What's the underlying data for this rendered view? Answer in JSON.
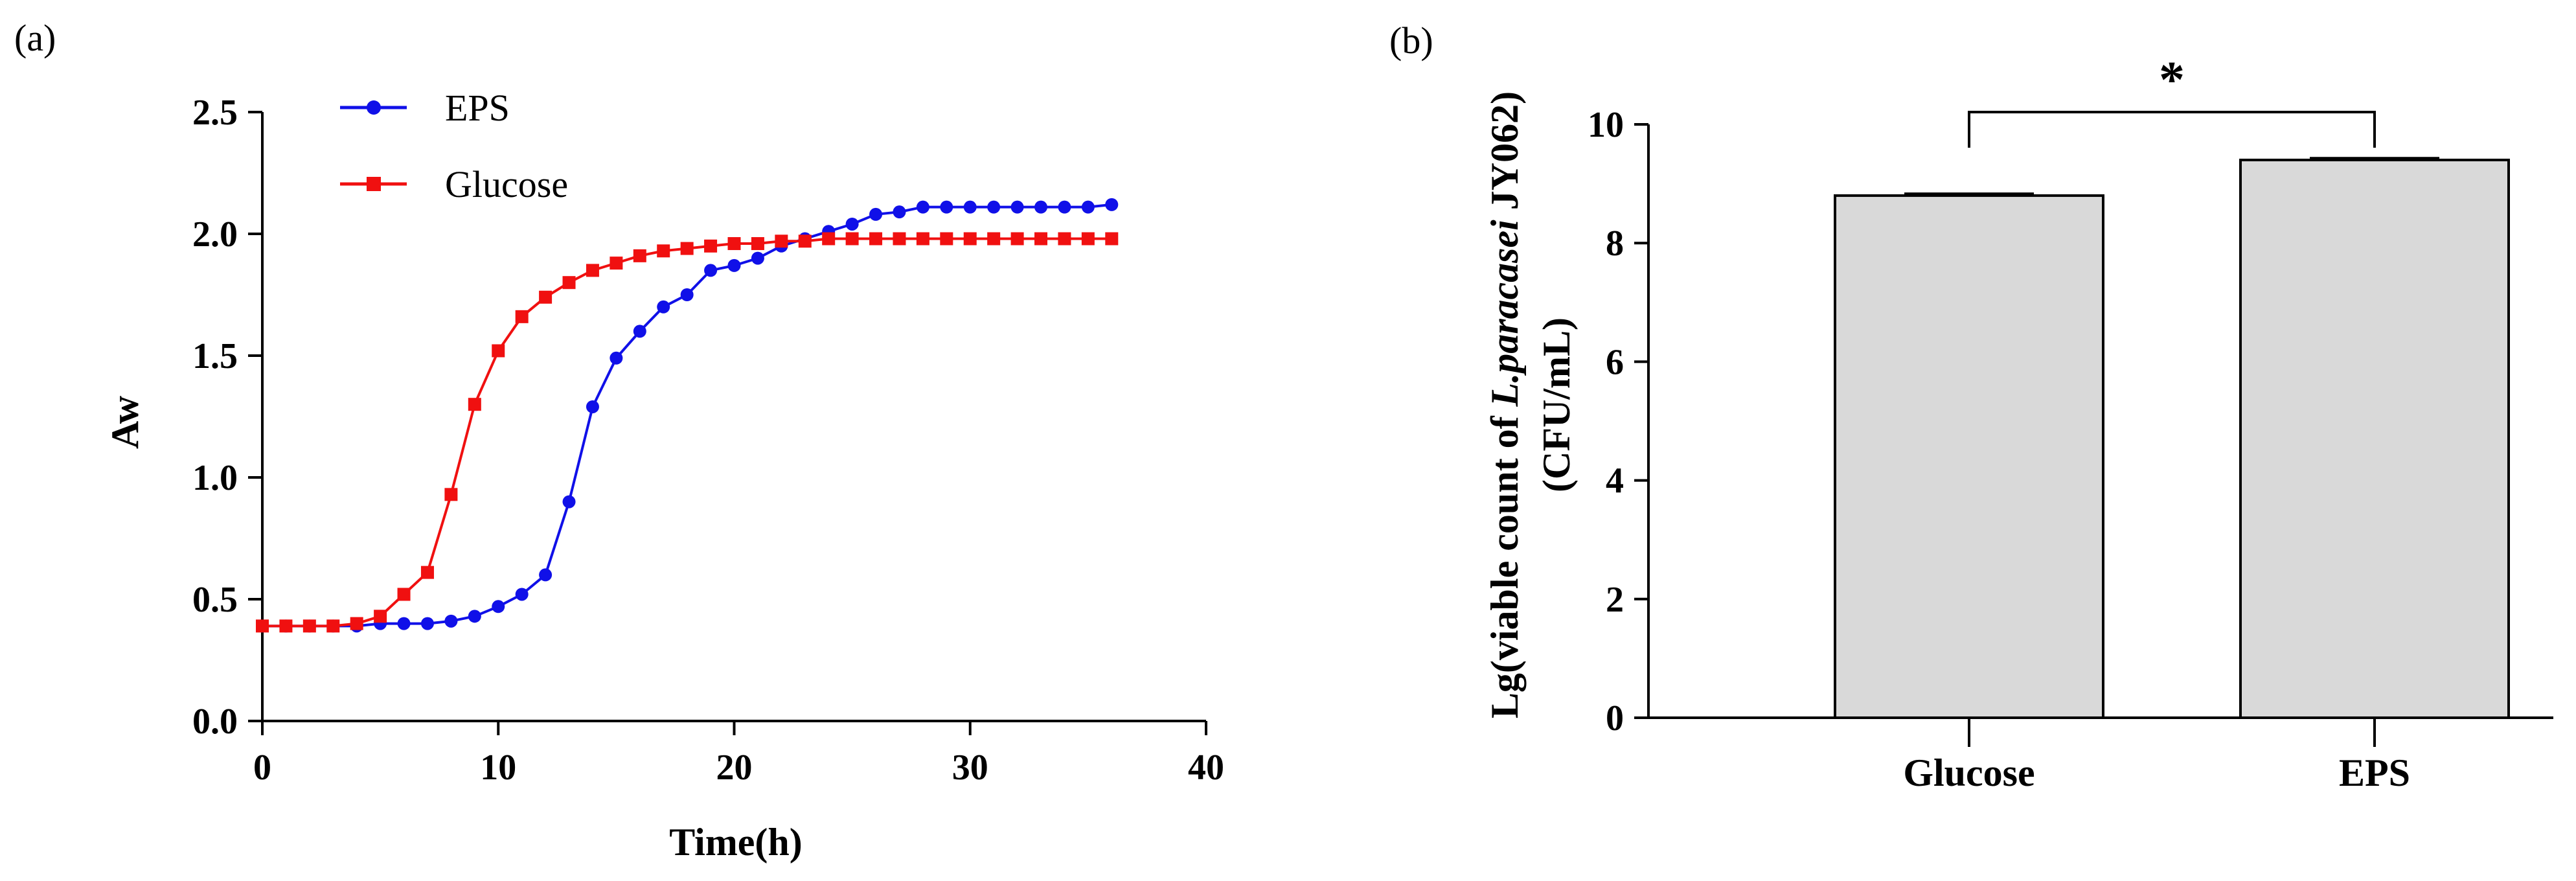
{
  "panel_labels": {
    "a": "(a)",
    "b": "(b)"
  },
  "chart_data": [
    {
      "type": "line",
      "xlabel": "Time(h)",
      "ylabel": "Aw",
      "xlim": [
        0,
        40
      ],
      "ylim": [
        0,
        2.5
      ],
      "xticks": [
        "0",
        "10",
        "20",
        "30",
        "40"
      ],
      "yticks": [
        "0.0",
        "0.5",
        "1.0",
        "1.5",
        "2.0",
        "2.5"
      ],
      "legend_position": "top-left",
      "x": [
        0,
        1,
        2,
        3,
        4,
        5,
        6,
        7,
        8,
        9,
        10,
        11,
        12,
        13,
        14,
        15,
        16,
        17,
        18,
        19,
        20,
        21,
        22,
        23,
        24,
        25,
        26,
        27,
        28,
        29,
        30,
        31,
        32,
        33,
        34,
        35,
        36
      ],
      "series": [
        {
          "name": "EPS",
          "color": "#1010e8",
          "marker": "circle",
          "values": [
            0.39,
            0.39,
            0.39,
            0.39,
            0.39,
            0.4,
            0.4,
            0.4,
            0.41,
            0.43,
            0.47,
            0.52,
            0.6,
            0.9,
            1.29,
            1.49,
            1.6,
            1.7,
            1.75,
            1.85,
            1.87,
            1.9,
            1.95,
            1.98,
            2.01,
            2.04,
            2.08,
            2.09,
            2.11,
            2.11,
            2.11,
            2.11,
            2.11,
            2.11,
            2.11,
            2.11,
            2.12
          ]
        },
        {
          "name": "Glucose",
          "color": "#f01010",
          "marker": "square",
          "values": [
            0.39,
            0.39,
            0.39,
            0.39,
            0.4,
            0.43,
            0.52,
            0.61,
            0.93,
            1.3,
            1.52,
            1.66,
            1.74,
            1.8,
            1.85,
            1.88,
            1.91,
            1.93,
            1.94,
            1.95,
            1.96,
            1.96,
            1.97,
            1.97,
            1.98,
            1.98,
            1.98,
            1.98,
            1.98,
            1.98,
            1.98,
            1.98,
            1.98,
            1.98,
            1.98,
            1.98,
            1.98
          ]
        }
      ]
    },
    {
      "type": "bar",
      "categories": [
        "Glucose",
        "EPS"
      ],
      "values": [
        8.8,
        9.4
      ],
      "errors": [
        0.03,
        0.03
      ],
      "bar_color": "#d9d9d9",
      "ylim": [
        0,
        10
      ],
      "yticks": [
        "0",
        "2",
        "4",
        "6",
        "8",
        "10"
      ],
      "ylabel_line1_pre": "Lg(viable count of ",
      "ylabel_line1_italic": "L.paracasei",
      "ylabel_line1_post": " JY062)",
      "ylabel_line2": "(CFU/mL)",
      "significance": "*"
    }
  ]
}
